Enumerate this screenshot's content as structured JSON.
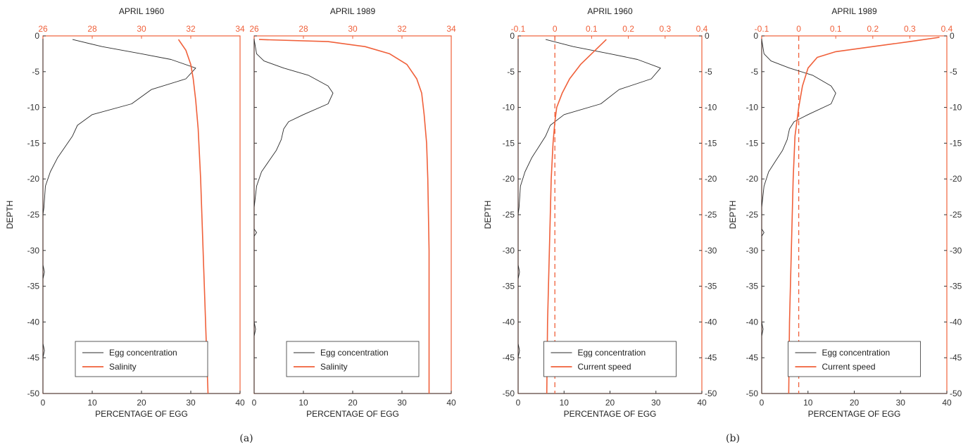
{
  "captions": [
    "(a)",
    "(b)"
  ],
  "colors": {
    "egg": "#2b2b2b",
    "secondary": "#f0603a",
    "frame": "#f0603a",
    "axis_text": "#333333"
  },
  "chart_data": [
    {
      "type": "line",
      "title": "APRIL 1960",
      "xlabel": "PERCENTAGE OF EGG",
      "ylabel": "DEPTH",
      "xlim": [
        0,
        40
      ],
      "ylim": [
        -50,
        0
      ],
      "x_ticks": [
        "0",
        "10",
        "20",
        "30",
        "40"
      ],
      "y_ticks": [
        "0",
        "-5",
        "-10",
        "-15",
        "-20",
        "-25",
        "-30",
        "-35",
        "-40",
        "-45",
        "-50"
      ],
      "top_axis": {
        "lim": [
          26,
          34
        ],
        "ticks": [
          "26",
          "28",
          "30",
          "32",
          "34"
        ]
      },
      "legend": [
        "Egg concentration",
        "Salinity"
      ],
      "legend_position": "bottom-center",
      "series": [
        {
          "name": "Egg concentration",
          "axis": "bottom",
          "points": [
            [
              6,
              -0.5
            ],
            [
              12,
              -1.5
            ],
            [
              20,
              -2.5
            ],
            [
              26,
              -3.3
            ],
            [
              31,
              -4.5
            ],
            [
              29,
              -6
            ],
            [
              22,
              -7.5
            ],
            [
              18,
              -9.5
            ],
            [
              10,
              -11
            ],
            [
              7,
              -12.5
            ],
            [
              6,
              -14
            ],
            [
              4.5,
              -15.5
            ],
            [
              3,
              -17
            ],
            [
              1.5,
              -19
            ],
            [
              0.5,
              -21
            ],
            [
              0.2,
              -24
            ],
            [
              0,
              -25
            ],
            [
              0,
              -32
            ],
            [
              0.3,
              -33
            ],
            [
              0,
              -34
            ],
            [
              0,
              -43
            ],
            [
              0.3,
              -44
            ],
            [
              0,
              -45
            ],
            [
              0,
              -50
            ]
          ]
        },
        {
          "name": "Salinity",
          "axis": "top",
          "points": [
            [
              31.5,
              -0.5
            ],
            [
              31.8,
              -2
            ],
            [
              32.0,
              -4
            ],
            [
              32.1,
              -6
            ],
            [
              32.2,
              -9
            ],
            [
              32.3,
              -13
            ],
            [
              32.4,
              -20
            ],
            [
              32.5,
              -30
            ],
            [
              32.6,
              -40
            ],
            [
              32.7,
              -50
            ]
          ]
        }
      ]
    },
    {
      "type": "line",
      "title": "APRIL 1989",
      "xlabel": "PERCENTAGE OF EGG",
      "ylabel": "",
      "xlim": [
        0,
        40
      ],
      "ylim": [
        -50,
        0
      ],
      "x_ticks": [
        "0",
        "10",
        "20",
        "30",
        "40"
      ],
      "y_ticks": [],
      "top_axis": {
        "lim": [
          26,
          34
        ],
        "ticks": [
          "26",
          "28",
          "30",
          "32",
          "34"
        ]
      },
      "legend": [
        "Egg concentration",
        "Salinity"
      ],
      "legend_position": "bottom-center",
      "series": [
        {
          "name": "Egg concentration",
          "axis": "bottom",
          "points": [
            [
              0,
              -0.5
            ],
            [
              0.5,
              -2.5
            ],
            [
              2,
              -3.5
            ],
            [
              6,
              -4.5
            ],
            [
              11,
              -5.5
            ],
            [
              15,
              -7
            ],
            [
              16,
              -8
            ],
            [
              15,
              -9.5
            ],
            [
              10,
              -11
            ],
            [
              7,
              -12
            ],
            [
              6,
              -13
            ],
            [
              5.5,
              -14.5
            ],
            [
              4.5,
              -16
            ],
            [
              3,
              -17.5
            ],
            [
              1.5,
              -19
            ],
            [
              0.5,
              -21
            ],
            [
              0,
              -24
            ],
            [
              0,
              -27
            ],
            [
              0.5,
              -27.5
            ],
            [
              0,
              -28
            ],
            [
              0,
              -40
            ],
            [
              0.3,
              -41
            ],
            [
              0,
              -42
            ],
            [
              0,
              -50
            ]
          ]
        },
        {
          "name": "Salinity",
          "axis": "top",
          "points": [
            [
              26.2,
              -0.5
            ],
            [
              29,
              -0.8
            ],
            [
              30.5,
              -1.5
            ],
            [
              31.5,
              -2.5
            ],
            [
              32.2,
              -4
            ],
            [
              32.6,
              -6
            ],
            [
              32.8,
              -8
            ],
            [
              32.9,
              -11
            ],
            [
              33.0,
              -15
            ],
            [
              33.05,
              -20
            ],
            [
              33.1,
              -30
            ],
            [
              33.1,
              -40
            ],
            [
              33.1,
              -50
            ]
          ]
        }
      ]
    },
    {
      "type": "line",
      "title": "APRIL 1960",
      "xlabel": "PERCENTAGE OF EGG",
      "ylabel": "DEPTH",
      "xlim": [
        0,
        40
      ],
      "ylim": [
        -50,
        0
      ],
      "x_ticks": [
        "0",
        "10",
        "20",
        "30",
        "40"
      ],
      "y_ticks": [
        "0",
        "-5",
        "-10",
        "-15",
        "-20",
        "-25",
        "-30",
        "-35",
        "-40",
        "-45",
        "-50"
      ],
      "right_y_ticks": [
        "0",
        "-5",
        "-10",
        "-15",
        "-20",
        "-25",
        "-30",
        "-35",
        "-40",
        "-45",
        "-50"
      ],
      "top_axis": {
        "lim": [
          -0.1,
          0.4
        ],
        "ticks": [
          "-0.1",
          "0",
          "0.1",
          "0.2",
          "0.3",
          "0.4"
        ]
      },
      "reference_line": {
        "axis": "top",
        "value": 0,
        "style": "dashed"
      },
      "legend": [
        "Egg concentration",
        "Current speed"
      ],
      "legend_position": "bottom-center",
      "series": [
        {
          "name": "Egg concentration",
          "axis": "bottom",
          "points": [
            [
              6,
              -0.5
            ],
            [
              12,
              -1.5
            ],
            [
              20,
              -2.5
            ],
            [
              26,
              -3.3
            ],
            [
              31,
              -4.5
            ],
            [
              29,
              -6
            ],
            [
              22,
              -7.5
            ],
            [
              18,
              -9.5
            ],
            [
              10,
              -11
            ],
            [
              7,
              -12.5
            ],
            [
              6,
              -14
            ],
            [
              4.5,
              -15.5
            ],
            [
              3,
              -17
            ],
            [
              1.5,
              -19
            ],
            [
              0.5,
              -21
            ],
            [
              0.2,
              -24
            ],
            [
              0,
              -25
            ],
            [
              0,
              -32
            ],
            [
              0.3,
              -33
            ],
            [
              0,
              -34
            ],
            [
              0,
              -43
            ],
            [
              0.3,
              -44
            ],
            [
              0,
              -45
            ],
            [
              0,
              -50
            ]
          ]
        },
        {
          "name": "Current speed",
          "axis": "top",
          "points": [
            [
              0.14,
              -0.5
            ],
            [
              0.11,
              -2
            ],
            [
              0.07,
              -4
            ],
            [
              0.04,
              -6
            ],
            [
              0.02,
              -8
            ],
            [
              0.005,
              -10
            ],
            [
              0.0,
              -12
            ],
            [
              -0.005,
              -15
            ],
            [
              -0.01,
              -20
            ],
            [
              -0.015,
              -30
            ],
            [
              -0.02,
              -40
            ],
            [
              -0.022,
              -50
            ]
          ]
        }
      ]
    },
    {
      "type": "line",
      "title": "APRIL 1989",
      "xlabel": "PERCENTAGE OF EGG",
      "ylabel": "DEPTH",
      "xlim": [
        0,
        40
      ],
      "ylim": [
        -50,
        0
      ],
      "x_ticks": [
        "0",
        "10",
        "20",
        "30",
        "40"
      ],
      "y_ticks": [
        "0",
        "-5",
        "-10",
        "-15",
        "-20",
        "-25",
        "-30",
        "-35",
        "-40",
        "-45",
        "-50"
      ],
      "right_y_ticks": [
        "0",
        "-5",
        "-10",
        "-15",
        "-20",
        "-25",
        "-30",
        "-35",
        "-40",
        "-45",
        "-50"
      ],
      "top_axis": {
        "lim": [
          -0.1,
          0.4
        ],
        "ticks": [
          "-0.1",
          "0",
          "0.1",
          "0.2",
          "0.3",
          "0.4"
        ]
      },
      "reference_line": {
        "axis": "top",
        "value": 0,
        "style": "dashed"
      },
      "legend": [
        "Egg concentration",
        "Current speed"
      ],
      "legend_position": "bottom-center",
      "series": [
        {
          "name": "Egg concentration",
          "axis": "bottom",
          "points": [
            [
              0,
              -0.5
            ],
            [
              0.5,
              -2.5
            ],
            [
              2,
              -3.5
            ],
            [
              6,
              -4.5
            ],
            [
              11,
              -5.5
            ],
            [
              15,
              -7
            ],
            [
              16,
              -8
            ],
            [
              15,
              -9.5
            ],
            [
              10,
              -11
            ],
            [
              7,
              -12
            ],
            [
              6,
              -13
            ],
            [
              5.5,
              -14.5
            ],
            [
              4.5,
              -16
            ],
            [
              3,
              -17.5
            ],
            [
              1.5,
              -19
            ],
            [
              0.5,
              -21
            ],
            [
              0,
              -24
            ],
            [
              0,
              -27
            ],
            [
              0.5,
              -27.5
            ],
            [
              0,
              -28
            ],
            [
              0,
              -40
            ],
            [
              0.3,
              -41
            ],
            [
              0,
              -42
            ],
            [
              0,
              -50
            ]
          ]
        },
        {
          "name": "Current speed",
          "axis": "top",
          "points": [
            [
              0.38,
              -0.2
            ],
            [
              0.3,
              -0.8
            ],
            [
              0.2,
              -1.5
            ],
            [
              0.1,
              -2.2
            ],
            [
              0.05,
              -3
            ],
            [
              0.025,
              -4.5
            ],
            [
              0.01,
              -7
            ],
            [
              0.0,
              -10
            ],
            [
              -0.01,
              -14
            ],
            [
              -0.015,
              -20
            ],
            [
              -0.02,
              -30
            ],
            [
              -0.025,
              -40
            ],
            [
              -0.027,
              -50
            ]
          ]
        }
      ]
    }
  ]
}
